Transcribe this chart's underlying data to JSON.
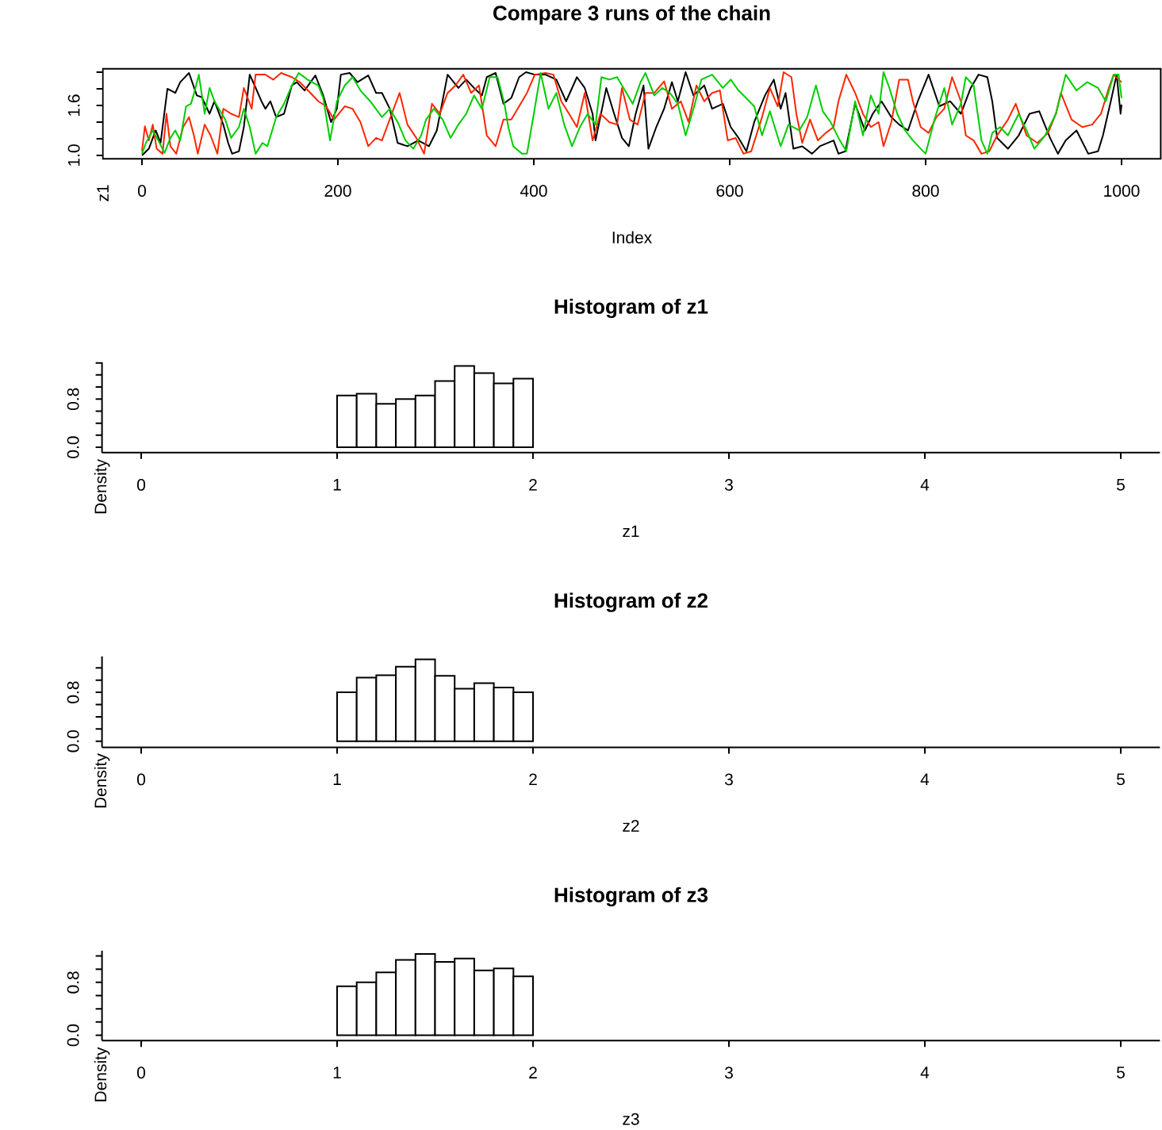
{
  "chart_data": [
    {
      "type": "line",
      "title": "Compare 3 runs of the chain",
      "xlabel": "Index",
      "ylabel": "z1",
      "xlim": [
        -40,
        1040
      ],
      "xticks": [
        0,
        200,
        400,
        600,
        800,
        1000
      ],
      "ylim": [
        0.96,
        2.04
      ],
      "yticks": [
        {
          "value": 1.0,
          "label": "1.0"
        },
        {
          "value": 1.2,
          "label": null
        },
        {
          "value": 1.4,
          "label": null
        },
        {
          "value": 1.6,
          "label": "1.6"
        },
        {
          "value": 1.8,
          "label": null
        },
        {
          "value": 2.0,
          "label": null
        }
      ],
      "series": [
        {
          "color": "#000000",
          "x": [
            0,
            7,
            14,
            19,
            26,
            34,
            39,
            48,
            56,
            61,
            69,
            74,
            83,
            88,
            92,
            99,
            104,
            110,
            115,
            122,
            126,
            131,
            137,
            145,
            153,
            158,
            166,
            177,
            185,
            193,
            199,
            203,
            212,
            220,
            231,
            239,
            245,
            253,
            261,
            271,
            282,
            293,
            301,
            312,
            323,
            331,
            339,
            347,
            352,
            361,
            369,
            377,
            385,
            392,
            401,
            412,
            423,
            433,
            444,
            452,
            460,
            463,
            474,
            482,
            490,
            497,
            504,
            512,
            517,
            525,
            533,
            541,
            547,
            555,
            563,
            574,
            582,
            593,
            601,
            609,
            617,
            625,
            636,
            645,
            652,
            657,
            665,
            674,
            684,
            692,
            706,
            711,
            718,
            728,
            738,
            746,
            755,
            765,
            773,
            782,
            792,
            803,
            814,
            825,
            836,
            846,
            854,
            863,
            868,
            873,
            884,
            895,
            906,
            916,
            927,
            935,
            943,
            954,
            966,
            976,
            981,
            989,
            995,
            999,
            1000
          ],
          "values": [
            1.0,
            1.08,
            1.3,
            1.15,
            1.8,
            1.75,
            1.88,
            1.99,
            1.72,
            1.7,
            1.5,
            1.65,
            1.37,
            1.15,
            1.02,
            1.05,
            1.34,
            1.97,
            1.84,
            1.65,
            1.56,
            1.65,
            1.46,
            1.5,
            1.84,
            1.88,
            1.78,
            1.96,
            1.72,
            1.4,
            1.56,
            1.97,
            1.99,
            1.88,
            1.96,
            1.75,
            1.75,
            1.56,
            1.15,
            1.11,
            1.18,
            1.11,
            1.3,
            1.97,
            1.81,
            1.91,
            1.81,
            1.72,
            1.94,
            1.99,
            1.62,
            1.69,
            1.94,
            2.0,
            1.97,
            1.97,
            1.91,
            1.65,
            1.94,
            1.81,
            1.5,
            1.18,
            1.81,
            1.5,
            1.21,
            1.11,
            1.5,
            1.84,
            1.08,
            1.34,
            1.56,
            1.88,
            1.65,
            2.0,
            1.72,
            1.84,
            1.56,
            1.62,
            1.34,
            1.21,
            1.05,
            1.4,
            1.72,
            1.91,
            1.56,
            1.75,
            1.08,
            1.11,
            1.02,
            1.11,
            1.18,
            1.02,
            1.05,
            1.62,
            1.3,
            1.5,
            1.65,
            1.46,
            1.37,
            1.3,
            1.65,
            1.97,
            1.59,
            1.65,
            1.5,
            1.81,
            1.97,
            1.94,
            1.65,
            1.21,
            1.08,
            1.24,
            1.5,
            1.53,
            1.21,
            1.02,
            1.18,
            1.3,
            1.02,
            1.05,
            1.24,
            1.65,
            1.97,
            1.5,
            1.61
          ]
        },
        {
          "color": "#ff2600",
          "x": [
            0,
            3,
            7,
            11,
            15,
            21,
            25,
            29,
            35,
            42,
            48,
            53,
            57,
            64,
            70,
            77,
            83,
            91,
            99,
            104,
            112,
            116,
            126,
            134,
            142,
            153,
            161,
            172,
            180,
            188,
            196,
            207,
            215,
            223,
            231,
            239,
            245,
            255,
            263,
            271,
            280,
            288,
            296,
            304,
            312,
            320,
            328,
            336,
            344,
            352,
            361,
            369,
            377,
            385,
            393,
            401,
            412,
            420,
            428,
            436,
            444,
            452,
            460,
            468,
            477,
            485,
            490,
            498,
            506,
            514,
            523,
            533,
            541,
            550,
            558,
            566,
            574,
            582,
            590,
            598,
            606,
            614,
            622,
            633,
            641,
            649,
            655,
            663,
            668,
            674,
            682,
            690,
            698,
            706,
            711,
            719,
            728,
            736,
            744,
            752,
            757,
            765,
            773,
            782,
            787,
            795,
            803,
            811,
            819,
            827,
            836,
            841,
            849,
            857,
            865,
            873,
            884,
            892,
            903,
            914,
            925,
            933,
            938,
            949,
            960,
            970,
            979,
            987,
            992,
            997,
            1000
          ],
          "values": [
            1.05,
            1.35,
            1.18,
            1.37,
            1.08,
            1.02,
            1.5,
            1.11,
            1.02,
            1.34,
            1.46,
            1.24,
            1.02,
            1.37,
            1.24,
            1.02,
            1.56,
            1.5,
            1.46,
            1.81,
            1.56,
            1.97,
            1.97,
            1.91,
            1.99,
            1.94,
            1.88,
            1.75,
            1.65,
            1.59,
            1.43,
            1.59,
            1.56,
            1.4,
            1.11,
            1.21,
            1.18,
            1.5,
            1.75,
            1.37,
            1.21,
            1.02,
            1.62,
            1.5,
            1.75,
            1.84,
            1.97,
            1.75,
            1.84,
            1.24,
            1.11,
            1.43,
            1.43,
            1.59,
            1.75,
            1.97,
            1.99,
            1.97,
            1.65,
            1.5,
            1.34,
            1.75,
            1.18,
            1.5,
            1.4,
            1.37,
            1.81,
            1.43,
            1.37,
            1.75,
            1.75,
            1.89,
            1.56,
            1.65,
            1.4,
            1.84,
            1.65,
            1.75,
            1.78,
            1.18,
            1.21,
            1.02,
            1.05,
            1.46,
            1.81,
            1.59,
            2.0,
            1.94,
            1.5,
            1.15,
            1.43,
            1.18,
            1.27,
            1.34,
            1.65,
            1.97,
            1.75,
            1.5,
            1.34,
            1.4,
            1.11,
            1.4,
            1.91,
            1.91,
            1.65,
            1.34,
            1.27,
            1.46,
            1.56,
            1.94,
            1.65,
            1.24,
            1.18,
            1.02,
            1.05,
            1.24,
            1.43,
            1.62,
            1.24,
            1.15,
            1.27,
            1.5,
            1.75,
            1.43,
            1.34,
            1.37,
            1.5,
            1.81,
            1.97,
            1.91,
            1.88
          ]
        },
        {
          "color": "#00cd00",
          "x": [
            0,
            4,
            11,
            18,
            23,
            29,
            34,
            39,
            45,
            50,
            54,
            58,
            64,
            69,
            74,
            80,
            85,
            91,
            99,
            104,
            110,
            116,
            123,
            128,
            137,
            145,
            153,
            160,
            169,
            180,
            185,
            192,
            199,
            207,
            215,
            223,
            233,
            245,
            253,
            261,
            269,
            277,
            285,
            290,
            298,
            307,
            315,
            323,
            331,
            339,
            347,
            355,
            363,
            370,
            374,
            379,
            388,
            393,
            400,
            407,
            415,
            423,
            431,
            439,
            447,
            455,
            463,
            469,
            477,
            485,
            493,
            501,
            509,
            514,
            523,
            531,
            539,
            547,
            555,
            563,
            571,
            582,
            593,
            601,
            609,
            620,
            625,
            633,
            641,
            652,
            660,
            671,
            679,
            688,
            695,
            703,
            711,
            719,
            728,
            736,
            744,
            752,
            757,
            763,
            771,
            779,
            787,
            795,
            800,
            809,
            819,
            827,
            836,
            841,
            849,
            857,
            863,
            868,
            876,
            884,
            895,
            903,
            911,
            922,
            933,
            943,
            954,
            965,
            976,
            984,
            992,
            997,
            1000
          ],
          "values": [
            1.02,
            1.15,
            1.3,
            1.15,
            1.03,
            1.21,
            1.3,
            1.18,
            1.59,
            1.62,
            1.78,
            1.97,
            1.5,
            1.81,
            1.65,
            1.53,
            1.43,
            1.21,
            1.34,
            1.56,
            1.34,
            1.02,
            1.15,
            1.11,
            1.46,
            1.62,
            1.84,
            1.99,
            1.91,
            1.84,
            1.69,
            1.18,
            1.65,
            1.84,
            1.94,
            1.78,
            1.65,
            1.46,
            1.56,
            1.4,
            1.18,
            1.08,
            1.24,
            1.43,
            1.56,
            1.43,
            1.21,
            1.37,
            1.5,
            1.72,
            1.56,
            1.94,
            1.94,
            1.62,
            1.34,
            1.11,
            1.02,
            1.02,
            1.5,
            1.99,
            1.56,
            1.75,
            1.37,
            1.11,
            1.34,
            1.5,
            1.37,
            1.94,
            1.91,
            1.94,
            1.78,
            1.62,
            1.88,
            1.99,
            1.72,
            1.81,
            1.75,
            1.62,
            1.24,
            1.56,
            1.91,
            1.97,
            1.81,
            1.91,
            1.78,
            1.65,
            1.59,
            1.24,
            1.53,
            1.11,
            1.37,
            1.3,
            1.46,
            1.84,
            1.53,
            1.4,
            1.21,
            1.05,
            1.65,
            1.24,
            1.72,
            1.5,
            2.0,
            1.81,
            1.5,
            1.3,
            1.18,
            1.08,
            1.02,
            1.43,
            1.81,
            1.37,
            1.62,
            1.94,
            1.84,
            1.18,
            1.02,
            1.27,
            1.34,
            1.24,
            1.5,
            1.3,
            1.08,
            1.24,
            1.5,
            1.97,
            1.78,
            1.88,
            1.81,
            1.65,
            1.97,
            1.97,
            1.69
          ]
        }
      ]
    },
    {
      "type": "histogram",
      "title": "Histogram of z1",
      "xlabel": "z1",
      "ylabel": "Density",
      "color": "#ffffff",
      "bins": [
        1.0,
        1.1,
        1.2,
        1.3,
        1.4,
        1.5,
        1.6,
        1.7,
        1.8,
        1.9,
        2.0
      ],
      "values": [
        0.86,
        0.89,
        0.72,
        0.8,
        0.86,
        1.1,
        1.35,
        1.23,
        1.06,
        1.14
      ],
      "xlim": [
        -0.2,
        5.2
      ],
      "xticks": [
        0,
        1,
        2,
        3,
        4,
        5
      ],
      "ylim": [
        -0.09,
        1.41
      ],
      "yticks": [
        {
          "value": 0.0,
          "label": "0.0"
        },
        {
          "value": 0.2,
          "label": null
        },
        {
          "value": 0.4,
          "label": null
        },
        {
          "value": 0.6,
          "label": null
        },
        {
          "value": 0.8,
          "label": "0.8"
        },
        {
          "value": 1.0,
          "label": null
        },
        {
          "value": 1.2,
          "label": null
        },
        {
          "value": 1.4,
          "label": null
        }
      ]
    },
    {
      "type": "histogram",
      "title": "Histogram of z2",
      "xlabel": "z2",
      "ylabel": "Density",
      "color": "#ffffff",
      "bins": [
        1.0,
        1.1,
        1.2,
        1.3,
        1.4,
        1.5,
        1.6,
        1.7,
        1.8,
        1.9,
        2.0
      ],
      "values": [
        0.8,
        1.04,
        1.08,
        1.22,
        1.34,
        1.07,
        0.86,
        0.95,
        0.88,
        0.8
      ],
      "xlim": [
        -0.2,
        5.2
      ],
      "xticks": [
        0,
        1,
        2,
        3,
        4,
        5
      ],
      "ylim": [
        -0.1,
        1.39
      ],
      "yticks": [
        {
          "value": 0.0,
          "label": "0.0"
        },
        {
          "value": 0.2,
          "label": null
        },
        {
          "value": 0.4,
          "label": null
        },
        {
          "value": 0.6,
          "label": null
        },
        {
          "value": 0.8,
          "label": "0.8"
        },
        {
          "value": 1.0,
          "label": null
        },
        {
          "value": 1.2,
          "label": null
        }
      ]
    },
    {
      "type": "histogram",
      "title": "Histogram of z3",
      "xlabel": "z3",
      "ylabel": "Density",
      "color": "#ffffff",
      "bins": [
        1.0,
        1.1,
        1.2,
        1.3,
        1.4,
        1.5,
        1.6,
        1.7,
        1.8,
        1.9,
        2.0
      ],
      "values": [
        0.74,
        0.8,
        0.95,
        1.14,
        1.23,
        1.11,
        1.16,
        0.98,
        1.01,
        0.89
      ],
      "xlim": [
        -0.2,
        5.2
      ],
      "xticks": [
        0,
        1,
        2,
        3,
        4,
        5
      ],
      "ylim": [
        -0.08,
        1.28
      ],
      "yticks": [
        {
          "value": 0.0,
          "label": "0.0"
        },
        {
          "value": 0.2,
          "label": null
        },
        {
          "value": 0.4,
          "label": null
        },
        {
          "value": 0.6,
          "label": null
        },
        {
          "value": 0.8,
          "label": "0.8"
        },
        {
          "value": 1.0,
          "label": null
        },
        {
          "value": 1.2,
          "label": null
        }
      ]
    }
  ]
}
